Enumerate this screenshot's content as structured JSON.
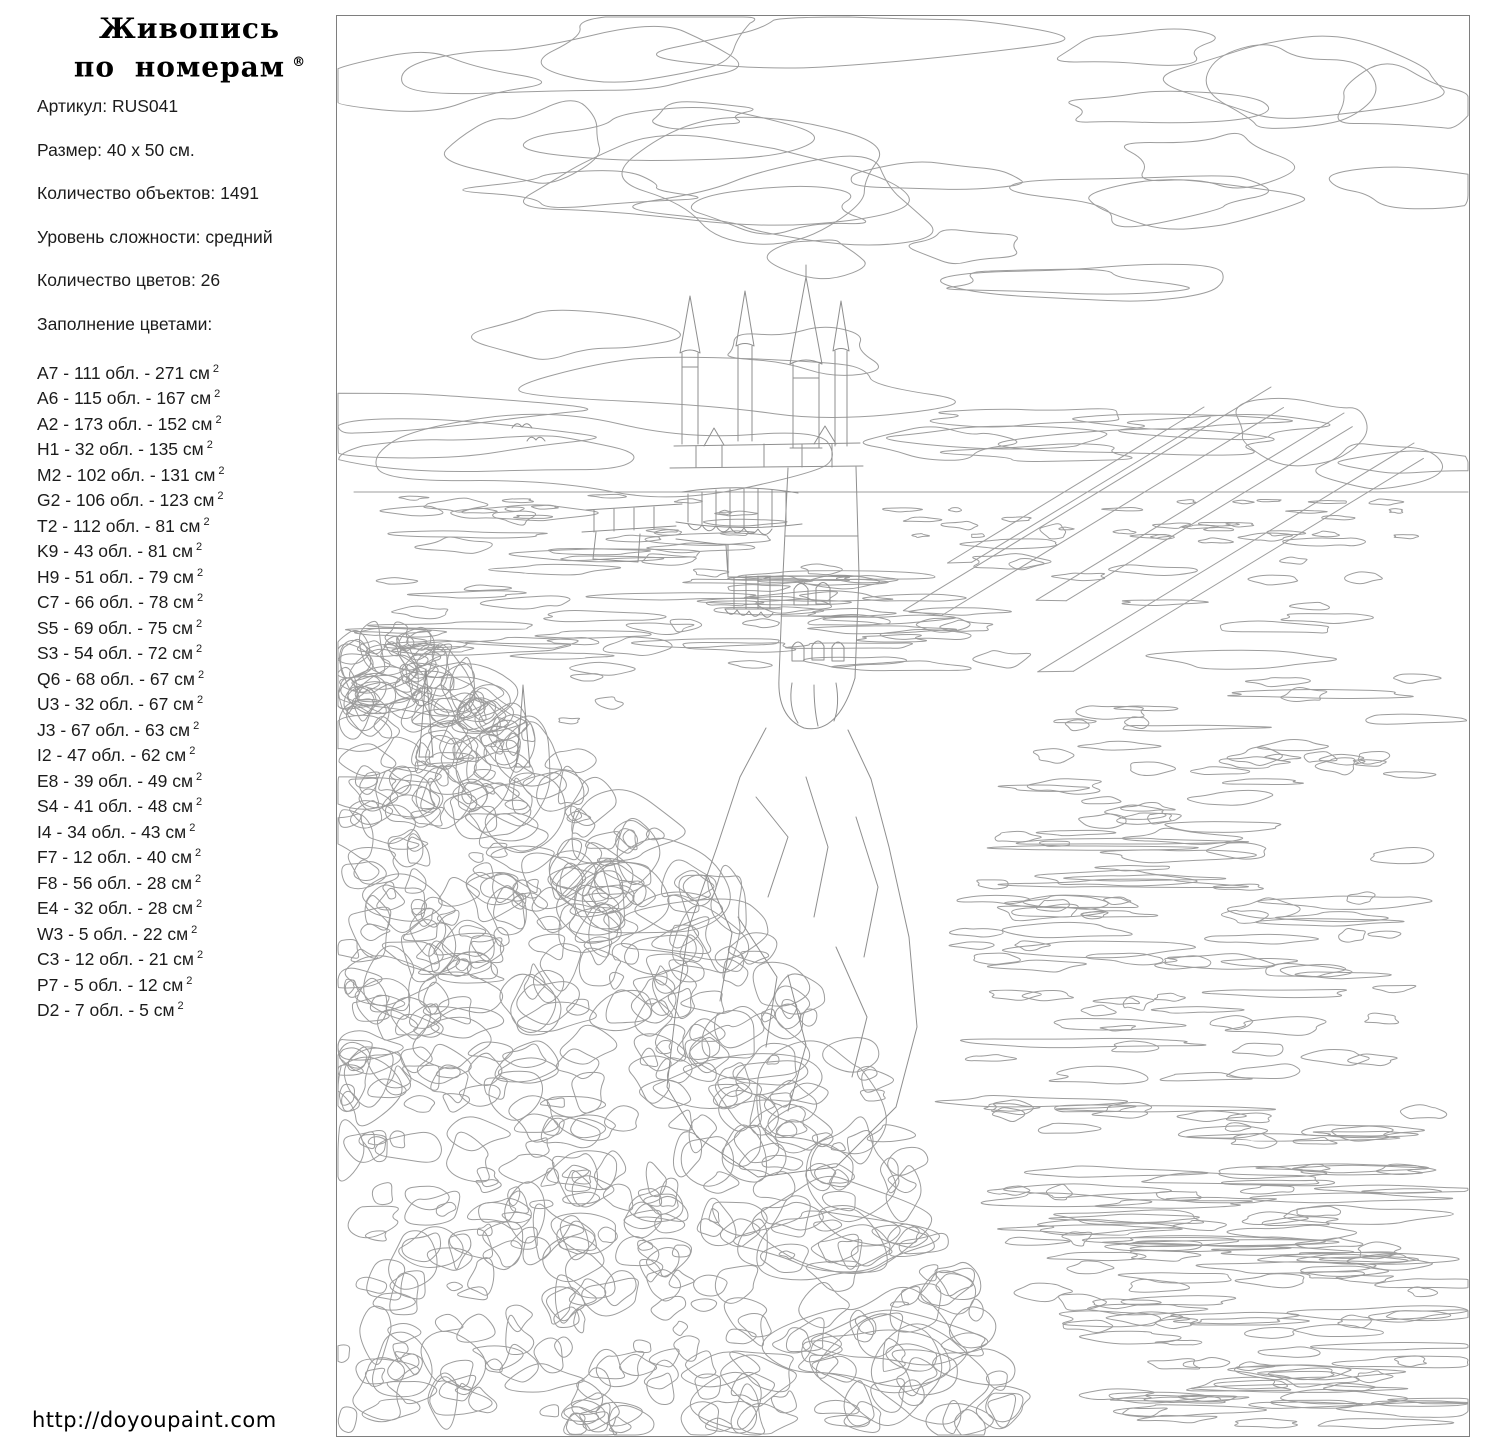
{
  "brand": {
    "line1": "Живопись",
    "line2": "по номерам",
    "mark": "®"
  },
  "details": [
    "Артикул: RUS041",
    "Размер: 40 x 50 см.",
    "Количество объектов: 1491",
    "Уровень сложности: средний",
    "Количество цветов: 26",
    "Заполнение цветами:"
  ],
  "color_fill": {
    "labels": {
      "sep": " - ",
      "regions": "обл.",
      "unit": "см",
      "sup": "2"
    },
    "items": [
      {
        "code": "A7",
        "regions": 111,
        "area": 271
      },
      {
        "code": "A6",
        "regions": 115,
        "area": 167
      },
      {
        "code": "A2",
        "regions": 173,
        "area": 152
      },
      {
        "code": "H1",
        "regions": 32,
        "area": 135
      },
      {
        "code": "M2",
        "regions": 102,
        "area": 131
      },
      {
        "code": "G2",
        "regions": 106,
        "area": 123
      },
      {
        "code": "T2",
        "regions": 112,
        "area": 81
      },
      {
        "code": "K9",
        "regions": 43,
        "area": 81
      },
      {
        "code": "H9",
        "regions": 51,
        "area": 79
      },
      {
        "code": "C7",
        "regions": 66,
        "area": 78
      },
      {
        "code": "S5",
        "regions": 69,
        "area": 75
      },
      {
        "code": "S3",
        "regions": 54,
        "area": 72
      },
      {
        "code": "Q6",
        "regions": 68,
        "area": 67
      },
      {
        "code": "U3",
        "regions": 32,
        "area": 67
      },
      {
        "code": "J3",
        "regions": 67,
        "area": 63
      },
      {
        "code": "I2",
        "regions": 47,
        "area": 62
      },
      {
        "code": "E8",
        "regions": 39,
        "area": 49
      },
      {
        "code": "S4",
        "regions": 41,
        "area": 48
      },
      {
        "code": "I4",
        "regions": 34,
        "area": 43
      },
      {
        "code": "F7",
        "regions": 12,
        "area": 40
      },
      {
        "code": "F8",
        "regions": 56,
        "area": 28
      },
      {
        "code": "E4",
        "regions": 32,
        "area": 28
      },
      {
        "code": "W3",
        "regions": 5,
        "area": 22
      },
      {
        "code": "C3",
        "regions": 12,
        "area": 21
      },
      {
        "code": "P7",
        "regions": 5,
        "area": 12
      },
      {
        "code": "D2",
        "regions": 7,
        "area": 5
      }
    ]
  },
  "footer": {
    "url": "http://doyoupaint.com"
  },
  "canvas_colors": {
    "line": "#9d9d9d",
    "frame": "#7e7e7e",
    "castle": "#8f8f8f"
  }
}
